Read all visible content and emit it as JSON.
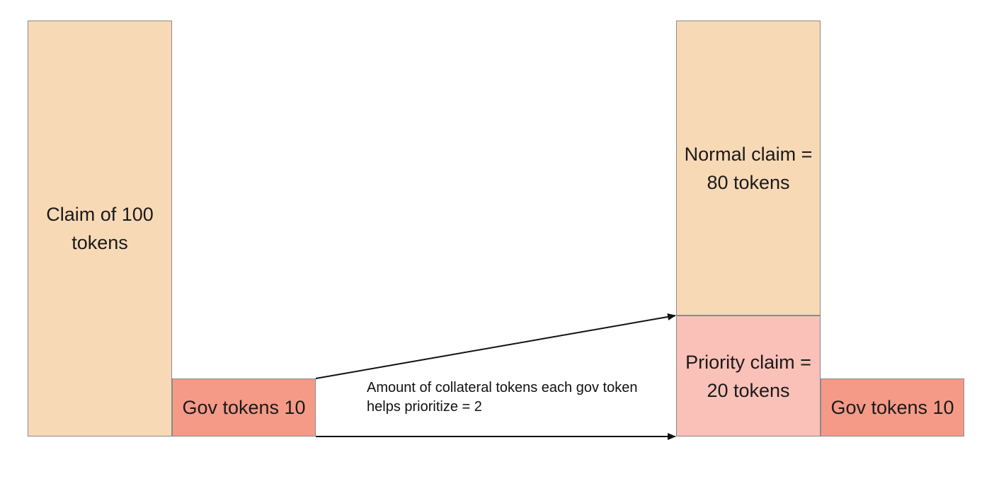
{
  "boxes": {
    "claim_total": "Claim of 100 tokens",
    "gov_tokens_left": "Gov tokens 10",
    "normal_claim": "Normal claim = 80 tokens",
    "priority_claim": "Priority claim = 20 tokens",
    "gov_tokens_right": "Gov tokens 10"
  },
  "annotation": "Amount of collateral tokens each gov token helps prioritize = 2",
  "colors": {
    "claim_fill": "#f8d9b6",
    "gov_fill": "#f59a87",
    "priority_fill": "#f9c1b8",
    "border": "#8a8a8a",
    "arrow": "#111111"
  }
}
